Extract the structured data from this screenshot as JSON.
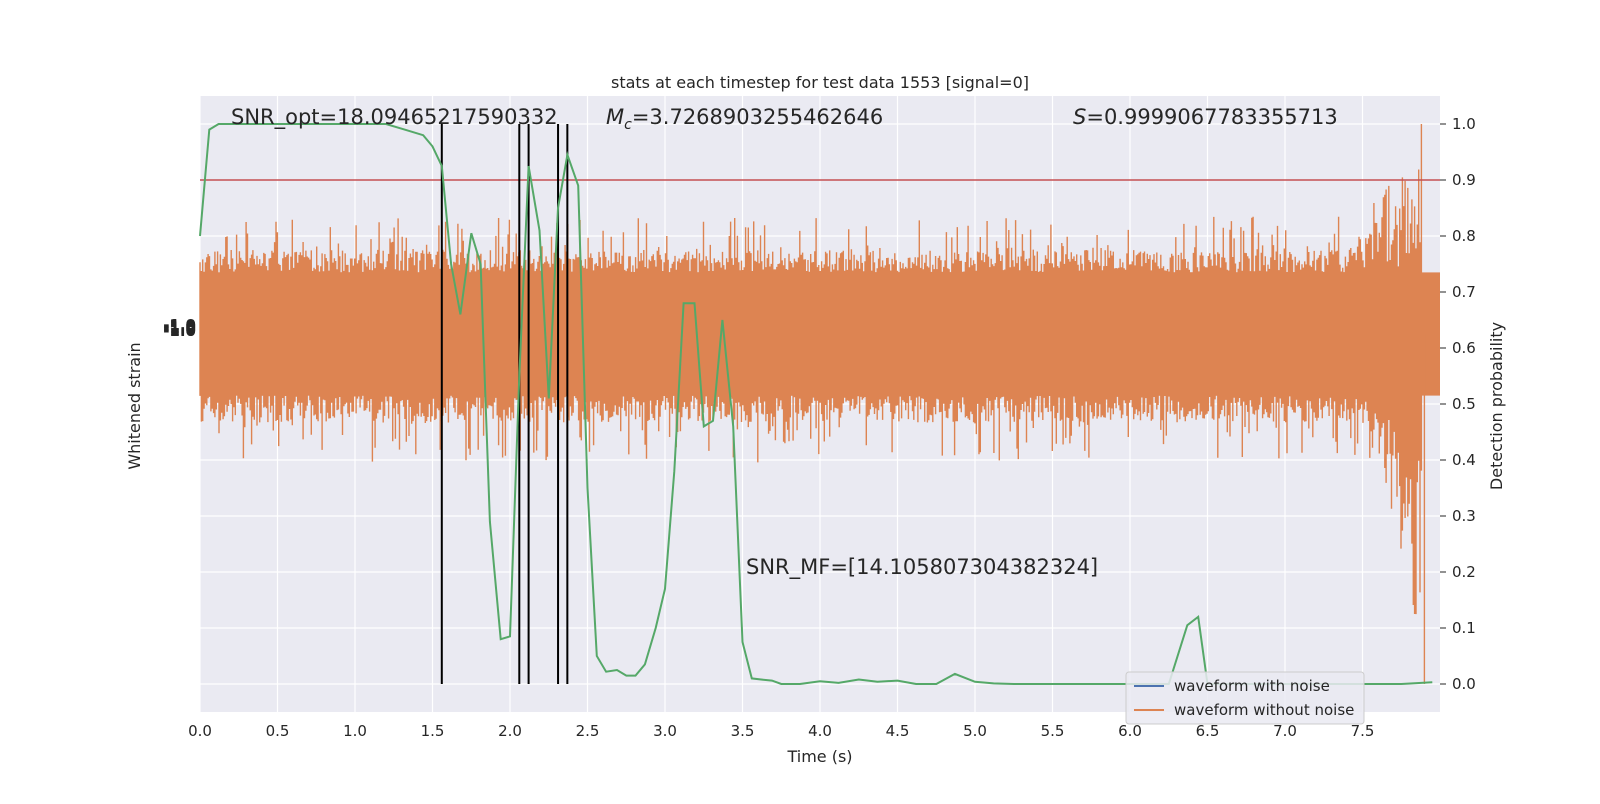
{
  "chart_data": {
    "type": "line",
    "title": "stats at each timestep for test data 1553 [signal=0]",
    "xlabel": "Time (s)",
    "ylabel_left": "Whitened strain",
    "ylabel_right": "Detection probability",
    "xlim": [
      0.0,
      8.0
    ],
    "ylim_right": [
      -0.05,
      1.05
    ],
    "grid": true,
    "legend_position": "lower-right",
    "x_ticks": [
      "0.0",
      "0.5",
      "1.0",
      "1.5",
      "2.0",
      "2.5",
      "3.0",
      "3.5",
      "4.0",
      "4.5",
      "5.0",
      "5.5",
      "6.0",
      "6.5",
      "7.0",
      "7.5"
    ],
    "y_ticks_right": [
      "0.0",
      "0.1",
      "0.2",
      "0.3",
      "0.4",
      "0.5",
      "0.6",
      "0.7",
      "0.8",
      "0.9",
      "1.0"
    ],
    "left_tick_text": "-1.0",
    "annotations": {
      "snr_opt": "SNR_opt=18.09465217590332",
      "mc_symbol": "M",
      "mc_sub": "c",
      "mc_value": "=3.7268903255462646",
      "s_symbol": "S",
      "s_value": "=0.9999067783355713",
      "snr_mf": "SNR_MF=[14.105807304382324]"
    },
    "threshold": 0.9,
    "event_lines_x": [
      1.56,
      2.06,
      2.12,
      2.31,
      2.37
    ],
    "noise_series": {
      "name": "waveform without noise",
      "color": "#dd8452",
      "band_probability": [
        0.515,
        0.735
      ],
      "spike_max_probability": 0.835,
      "spike_min_probability": 0.395,
      "chirp_peak_x": 7.88,
      "chirp_peak_probability": 1.0,
      "chirp_min_probability": 0.0
    },
    "series": [
      {
        "name": "waveform with noise",
        "color": "#4c72b0",
        "x": [],
        "values": []
      },
      {
        "name": "waveform without noise",
        "color": "#dd8452",
        "x": [],
        "values": []
      },
      {
        "color": "#55a868",
        "x": [
          0.0,
          0.06,
          0.12,
          0.25,
          0.5,
          0.75,
          1.0,
          1.2,
          1.32,
          1.44,
          1.5,
          1.56,
          1.62,
          1.68,
          1.75,
          1.81,
          1.87,
          1.94,
          2.0,
          2.06,
          2.12,
          2.19,
          2.25,
          2.31,
          2.37,
          2.44,
          2.5,
          2.56,
          2.62,
          2.69,
          2.75,
          2.81,
          2.87,
          2.94,
          3.0,
          3.06,
          3.12,
          3.19,
          3.25,
          3.31,
          3.37,
          3.44,
          3.5,
          3.56,
          3.62,
          3.69,
          3.75,
          3.87,
          4.0,
          4.12,
          4.25,
          4.37,
          4.5,
          4.62,
          4.75,
          4.87,
          5.0,
          5.12,
          5.25,
          5.5,
          6.0,
          6.25,
          6.37,
          6.44,
          6.5,
          6.75,
          7.0,
          7.5,
          7.75,
          7.95
        ],
        "values": [
          0.8,
          0.99,
          1.0,
          1.0,
          1.0,
          1.0,
          1.0,
          1.0,
          0.99,
          0.98,
          0.96,
          0.925,
          0.75,
          0.66,
          0.805,
          0.75,
          0.29,
          0.08,
          0.085,
          0.55,
          0.925,
          0.81,
          0.51,
          0.85,
          0.945,
          0.89,
          0.35,
          0.05,
          0.022,
          0.025,
          0.015,
          0.015,
          0.035,
          0.1,
          0.17,
          0.38,
          0.68,
          0.68,
          0.46,
          0.47,
          0.65,
          0.46,
          0.075,
          0.01,
          0.008,
          0.006,
          0.0,
          0.0,
          0.005,
          0.002,
          0.008,
          0.004,
          0.006,
          0.0,
          0.0,
          0.018,
          0.004,
          0.001,
          0.0,
          0.0,
          0.0,
          0.0,
          0.105,
          0.12,
          0.0,
          0.0,
          0.0,
          0.0,
          0.0,
          0.003
        ]
      }
    ],
    "colors": {
      "axes_bg": "#eaeaf2",
      "grid": "#ffffff",
      "threshold": "#c44e52",
      "event": "#000000",
      "prob": "#55a868"
    }
  }
}
